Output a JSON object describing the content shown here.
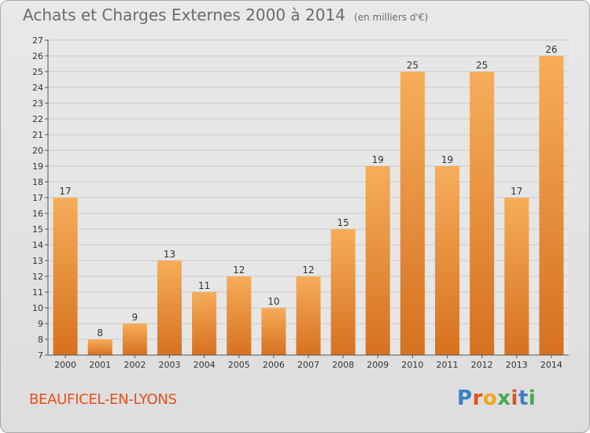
{
  "header": {
    "title": "Achats et Charges Externes 2000 à 2014",
    "subtitle": "(en milliers d'€)"
  },
  "footer": {
    "commune": "BEAUFICEL-EN-LYONS",
    "logo_text": "Proxiti",
    "logo_colors": [
      "#3a7fc8",
      "#e5501e",
      "#f2a41c",
      "#45a94a",
      "#e5501e",
      "#3a7fc8",
      "#45a94a"
    ]
  },
  "colors": {
    "bar_light": "#f6ad5a",
    "bar_dark": "#d6711f",
    "axis": "#555555",
    "grid": "#c9c9c9",
    "text": "#333333"
  },
  "chart_data": {
    "type": "bar",
    "categories": [
      "2000",
      "2001",
      "2002",
      "2003",
      "2004",
      "2005",
      "2006",
      "2007",
      "2008",
      "2009",
      "2010",
      "2011",
      "2012",
      "2013",
      "2014"
    ],
    "values": [
      17,
      8,
      9,
      13,
      11,
      12,
      10,
      12,
      15,
      19,
      25,
      19,
      25,
      17,
      26
    ],
    "ylim": [
      7,
      27
    ],
    "yticks": [
      7,
      8,
      9,
      10,
      11,
      12,
      13,
      14,
      15,
      16,
      17,
      18,
      19,
      20,
      21,
      22,
      23,
      24,
      25,
      26,
      27
    ],
    "grid": true,
    "data_labels": true
  }
}
